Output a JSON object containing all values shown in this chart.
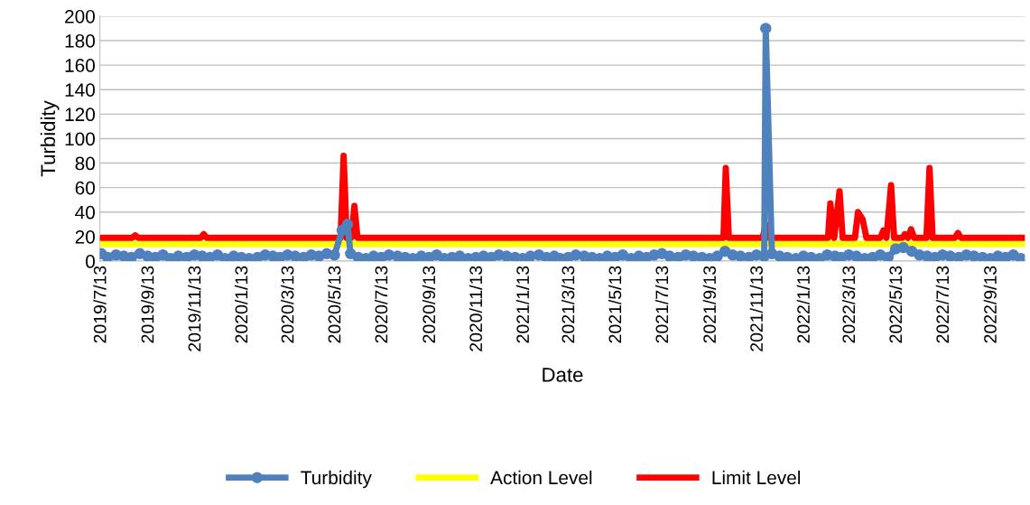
{
  "chart_data": {
    "type": "line",
    "xlabel": "Date",
    "ylabel": "Turbidity",
    "ylim": [
      0,
      200
    ],
    "yticks": [
      0,
      20,
      40,
      60,
      80,
      100,
      120,
      140,
      160,
      180,
      200
    ],
    "xlim": [
      "2019-07-11",
      "2022-10-26"
    ],
    "xticks": [
      {
        "value": "2019-07-13",
        "label": "2019/7/13"
      },
      {
        "value": "2019-09-13",
        "label": "2019/9/13"
      },
      {
        "value": "2019-11-13",
        "label": "2019/11/13"
      },
      {
        "value": "2020-01-13",
        "label": "2020/1/13"
      },
      {
        "value": "2020-03-13",
        "label": "2020/3/13"
      },
      {
        "value": "2020-05-13",
        "label": "2020/5/13"
      },
      {
        "value": "2020-07-13",
        "label": "2020/7/13"
      },
      {
        "value": "2020-09-13",
        "label": "2020/9/13"
      },
      {
        "value": "2020-11-13",
        "label": "2020/11/13"
      },
      {
        "value": "2021-01-13",
        "label": "2021/1/13"
      },
      {
        "value": "2021-03-13",
        "label": "2021/3/13"
      },
      {
        "value": "2021-05-13",
        "label": "2021/5/13"
      },
      {
        "value": "2021-07-13",
        "label": "2021/7/13"
      },
      {
        "value": "2021-09-13",
        "label": "2021/9/13"
      },
      {
        "value": "2021-11-13",
        "label": "2021/11/13"
      },
      {
        "value": "2022-01-13",
        "label": "2022/1/13"
      },
      {
        "value": "2022-03-13",
        "label": "2022/3/13"
      },
      {
        "value": "2022-05-13",
        "label": "2022/5/13"
      },
      {
        "value": "2022-07-13",
        "label": "2022/7/13"
      },
      {
        "value": "2022-09-13",
        "label": "2022/9/13"
      }
    ],
    "grid": "y",
    "legend": "bottom",
    "x": [
      "2019-07-13",
      "2019-07-21",
      "2019-08-01",
      "2019-08-11",
      "2019-08-21",
      "2019-09-01",
      "2019-09-11",
      "2019-09-21",
      "2019-10-01",
      "2019-10-11",
      "2019-10-21",
      "2019-11-01",
      "2019-11-11",
      "2019-11-21",
      "2019-12-01",
      "2019-12-11",
      "2019-12-21",
      "2020-01-01",
      "2020-01-11",
      "2020-01-21",
      "2020-02-01",
      "2020-02-11",
      "2020-02-21",
      "2020-03-01",
      "2020-03-11",
      "2020-03-21",
      "2020-04-01",
      "2020-04-11",
      "2020-04-21",
      "2020-05-01",
      "2020-05-11",
      "2020-05-21",
      "2020-05-28",
      "2020-06-01",
      "2020-06-11",
      "2020-06-21",
      "2020-07-01",
      "2020-07-11",
      "2020-07-21",
      "2020-08-01",
      "2020-08-11",
      "2020-08-21",
      "2020-09-01",
      "2020-09-11",
      "2020-09-21",
      "2020-10-01",
      "2020-10-11",
      "2020-10-21",
      "2020-11-01",
      "2020-11-11",
      "2020-11-21",
      "2020-12-01",
      "2020-12-11",
      "2020-12-21",
      "2021-01-01",
      "2021-01-11",
      "2021-01-21",
      "2021-02-01",
      "2021-02-11",
      "2021-02-21",
      "2021-03-01",
      "2021-03-11",
      "2021-03-21",
      "2021-04-01",
      "2021-04-11",
      "2021-04-21",
      "2021-05-01",
      "2021-05-11",
      "2021-05-21",
      "2021-06-01",
      "2021-06-11",
      "2021-06-21",
      "2021-07-01",
      "2021-07-11",
      "2021-07-21",
      "2021-08-01",
      "2021-08-11",
      "2021-08-21",
      "2021-09-01",
      "2021-09-11",
      "2021-09-21",
      "2021-10-01",
      "2021-10-11",
      "2021-10-21",
      "2021-11-01",
      "2021-11-11",
      "2021-11-21",
      "2021-11-23",
      "2021-12-01",
      "2021-12-11",
      "2021-12-21",
      "2022-01-01",
      "2022-01-11",
      "2022-01-21",
      "2022-02-01",
      "2022-02-11",
      "2022-02-21",
      "2022-03-01",
      "2022-03-11",
      "2022-03-21",
      "2022-04-01",
      "2022-04-11",
      "2022-04-21",
      "2022-05-01",
      "2022-05-11",
      "2022-05-21",
      "2022-06-01",
      "2022-06-11",
      "2022-06-21",
      "2022-07-01",
      "2022-07-11",
      "2022-07-21",
      "2022-08-01",
      "2022-08-11",
      "2022-08-21",
      "2022-09-01",
      "2022-09-11",
      "2022-09-21",
      "2022-10-01",
      "2022-10-11",
      "2022-10-21"
    ],
    "series": [
      {
        "name": "Turbidity",
        "color": "#4f81bd",
        "marker": "circle",
        "values": [
          6,
          3,
          5,
          4,
          3,
          6,
          4,
          3,
          5,
          2,
          4,
          3,
          5,
          4,
          3,
          5,
          2,
          4,
          3,
          2,
          3,
          5,
          4,
          3,
          5,
          4,
          3,
          5,
          4,
          6,
          5,
          25,
          30,
          6,
          3,
          2,
          4,
          3,
          5,
          4,
          3,
          2,
          4,
          3,
          5,
          2,
          3,
          4,
          2,
          3,
          4,
          3,
          5,
          4,
          3,
          2,
          4,
          5,
          3,
          4,
          2,
          3,
          5,
          4,
          3,
          2,
          4,
          3,
          5,
          2,
          4,
          3,
          5,
          6,
          4,
          3,
          5,
          4,
          3,
          2,
          4,
          8,
          5,
          4,
          3,
          5,
          4,
          190,
          6,
          4,
          3,
          2,
          4,
          3,
          2,
          5,
          4,
          3,
          5,
          4,
          2,
          3,
          5,
          3,
          10,
          11,
          8,
          5,
          4,
          3,
          5,
          4,
          3,
          5,
          4,
          3,
          2,
          4,
          3,
          5,
          2
        ]
      },
      {
        "name": "Action Level",
        "color": "#ffff00",
        "marker": "none",
        "x": [
          "2019-07-13",
          "2022-10-26"
        ],
        "values": [
          14,
          14
        ]
      },
      {
        "name": "Limit Level",
        "color": "#ff0000",
        "marker": "none",
        "x": [
          "2019-07-13",
          "2019-08-22",
          "2019-08-26",
          "2019-08-30",
          "2019-11-19",
          "2019-11-23",
          "2019-11-27",
          "2020-05-19",
          "2020-05-23",
          "2020-05-27",
          "2020-06-02",
          "2020-06-06",
          "2020-06-10",
          "2021-09-29",
          "2021-10-02",
          "2021-10-06",
          "2021-11-19",
          "2021-11-23",
          "2021-11-27",
          "2022-02-12",
          "2022-02-15",
          "2022-02-20",
          "2022-02-27",
          "2022-03-03",
          "2022-03-19",
          "2022-03-23",
          "2022-03-29",
          "2022-04-03",
          "2022-04-21",
          "2022-04-25",
          "2022-04-29",
          "2022-05-05",
          "2022-05-09",
          "2022-05-20",
          "2022-05-23",
          "2022-05-27",
          "2022-05-31",
          "2022-06-04",
          "2022-06-20",
          "2022-06-24",
          "2022-06-28",
          "2022-07-27",
          "2022-07-31",
          "2022-08-04",
          "2022-10-26"
        ],
        "values": [
          19,
          19,
          21,
          19,
          19,
          22,
          19,
          19,
          86,
          19,
          19,
          45,
          19,
          19,
          76,
          19,
          19,
          30,
          19,
          19,
          47,
          19,
          57,
          19,
          19,
          40,
          34,
          19,
          19,
          25,
          19,
          62,
          19,
          19,
          22,
          19,
          26,
          19,
          19,
          76,
          19,
          19,
          23,
          19,
          19
        ]
      }
    ]
  }
}
